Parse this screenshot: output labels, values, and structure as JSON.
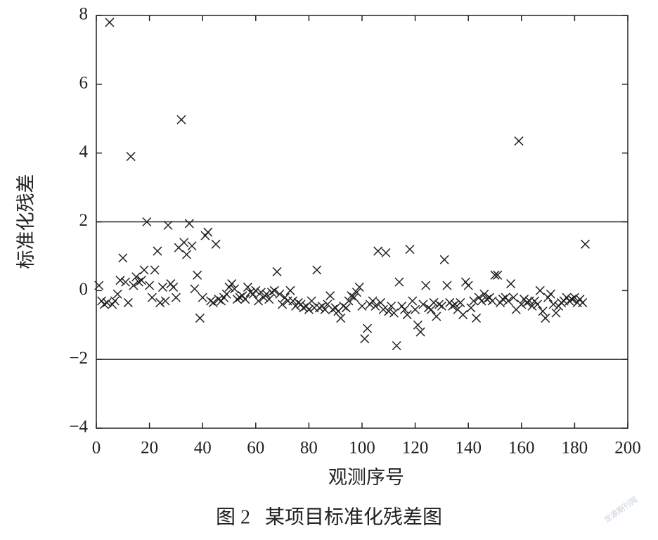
{
  "chart_data": {
    "type": "scatter",
    "x_label": "观测序号",
    "y_label": "标准化残差",
    "caption": "图 2   某项目标准化残差图",
    "watermark": "龙源期刊网",
    "xlim": [
      0,
      200
    ],
    "xticks": [
      0,
      20,
      40,
      60,
      80,
      100,
      120,
      140,
      160,
      180,
      200
    ],
    "ylim": [
      -4,
      8
    ],
    "yticks": [
      {
        "value": -4,
        "label": "−4"
      },
      {
        "value": -2,
        "label": "−2"
      },
      0,
      2,
      4,
      6,
      8
    ],
    "reference_lines": [
      2,
      -2
    ],
    "color": "#222222",
    "x": [
      1,
      2,
      3,
      4,
      5,
      6,
      7,
      8,
      9,
      10,
      11,
      12,
      13,
      14,
      15,
      16,
      17,
      18,
      19,
      20,
      21,
      22,
      23,
      24,
      25,
      26,
      27,
      28,
      29,
      30,
      31,
      32,
      33,
      34,
      35,
      36,
      37,
      38,
      39,
      40,
      41,
      42,
      43,
      44,
      45,
      46,
      47,
      48,
      49,
      50,
      51,
      52,
      53,
      54,
      55,
      56,
      57,
      58,
      59,
      60,
      61,
      62,
      63,
      64,
      65,
      66,
      67,
      68,
      69,
      70,
      71,
      72,
      73,
      74,
      75,
      76,
      77,
      78,
      79,
      80,
      81,
      82,
      83,
      84,
      85,
      86,
      87,
      88,
      89,
      90,
      91,
      92,
      93,
      94,
      95,
      96,
      97,
      98,
      99,
      100,
      101,
      102,
      103,
      104,
      105,
      106,
      107,
      108,
      109,
      110,
      111,
      112,
      113,
      114,
      115,
      116,
      117,
      118,
      119,
      120,
      121,
      122,
      123,
      124,
      125,
      126,
      127,
      128,
      129,
      130,
      131,
      132,
      133,
      134,
      135,
      136,
      137,
      138,
      139,
      140,
      141,
      142,
      143,
      144,
      145,
      146,
      147,
      148,
      149,
      150,
      151,
      152,
      153,
      154,
      155,
      156,
      157,
      158,
      159,
      160,
      161,
      162,
      163,
      164,
      165,
      166,
      167,
      168,
      169,
      170,
      171,
      172,
      173,
      174,
      175,
      176,
      177,
      178,
      179,
      180,
      181,
      182,
      183,
      184
    ],
    "values": [
      0.15,
      -0.3,
      -0.4,
      -0.35,
      7.8,
      -0.4,
      -0.3,
      -0.1,
      0.3,
      0.95,
      0.25,
      -0.35,
      3.9,
      0.15,
      0.4,
      0.25,
      0.3,
      0.6,
      2.0,
      0.15,
      -0.2,
      0.6,
      1.15,
      -0.35,
      0.1,
      -0.3,
      1.9,
      0.2,
      0.1,
      -0.2,
      1.25,
      4.97,
      1.4,
      1.05,
      1.95,
      1.3,
      0.05,
      0.45,
      -0.8,
      -0.2,
      1.6,
      1.7,
      -0.3,
      -0.35,
      1.35,
      -0.25,
      -0.3,
      -0.2,
      -0.1,
      0.1,
      0.2,
      0.05,
      -0.25,
      -0.2,
      -0.15,
      -0.25,
      0.1,
      -0.05,
      -0.1,
      0.0,
      -0.3,
      -0.05,
      -0.2,
      -0.1,
      -0.25,
      -0.05,
      0.0,
      0.55,
      -0.1,
      -0.4,
      -0.2,
      -0.3,
      0.0,
      -0.3,
      -0.45,
      -0.35,
      -0.4,
      -0.5,
      -0.45,
      -0.55,
      -0.3,
      -0.5,
      0.6,
      -0.5,
      -0.45,
      -0.55,
      -0.4,
      -0.15,
      -0.55,
      -0.5,
      -0.6,
      -0.8,
      -0.45,
      -0.5,
      -0.3,
      -0.15,
      -0.2,
      -0.05,
      0.1,
      -0.45,
      -1.4,
      -1.1,
      -0.4,
      -0.3,
      -0.45,
      1.15,
      -0.35,
      -0.55,
      1.1,
      -0.6,
      -0.45,
      -0.65,
      -1.6,
      0.25,
      -0.45,
      -0.55,
      -0.7,
      1.2,
      -0.3,
      -0.55,
      -1.0,
      -1.2,
      -0.4,
      0.15,
      -0.5,
      -0.55,
      -0.35,
      -0.75,
      -0.4,
      -0.45,
      0.9,
      0.15,
      -0.35,
      -0.45,
      -0.4,
      -0.55,
      -0.35,
      -0.7,
      0.25,
      0.15,
      -0.5,
      -0.3,
      -0.8,
      -0.2,
      -0.3,
      -0.1,
      -0.25,
      -0.2,
      -0.3,
      0.45,
      0.45,
      -0.35,
      -0.25,
      -0.2,
      -0.3,
      0.2,
      -0.2,
      -0.55,
      4.35,
      -0.4,
      -0.25,
      -0.35,
      -0.3,
      -0.45,
      -0.3,
      -0.4,
      0.0,
      -0.6,
      -0.8,
      -0.2,
      -0.1,
      -0.4,
      -0.65,
      -0.45,
      -0.35,
      -0.3,
      -0.2,
      -0.3,
      -0.25,
      -0.2,
      -0.35,
      -0.25,
      -0.35,
      1.35
    ]
  }
}
